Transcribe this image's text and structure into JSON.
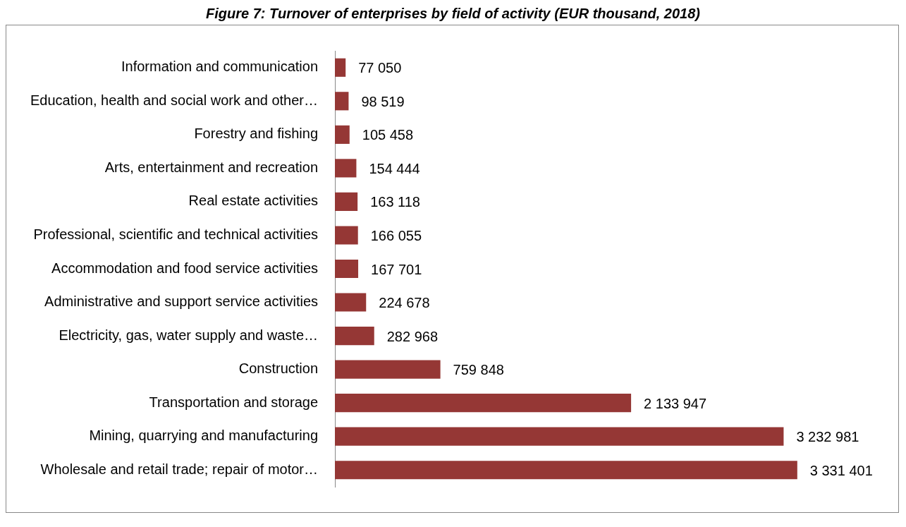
{
  "chart_data": {
    "type": "bar",
    "orientation": "horizontal",
    "title": "Figure 7: Turnover of enterprises by field of activity (EUR thousand, 2018)",
    "categories": [
      "Information and communication",
      "Education, health and social work and other…",
      "Forestry and fishing",
      "Arts, entertainment and recreation",
      "Real estate activities",
      "Professional, scientific and technical activities",
      "Accommodation and food service activities",
      "Administrative and support service activities",
      "Electricity, gas, water supply and waste…",
      "Construction",
      "Transportation and storage",
      "Mining, quarrying and manufacturing",
      "Wholesale and retail trade; repair of motor…"
    ],
    "values": [
      77050,
      98519,
      105458,
      154444,
      163118,
      166055,
      167701,
      224678,
      282968,
      759848,
      2133947,
      3232981,
      3331401
    ],
    "value_labels": [
      "77 050",
      "98 519",
      "105 458",
      "154 444",
      "163 118",
      "166 055",
      "167 701",
      "224 678",
      "282 968",
      "759 848",
      "2 133 947",
      "3 232 981",
      "3 331 401"
    ],
    "color": "#953735"
  }
}
